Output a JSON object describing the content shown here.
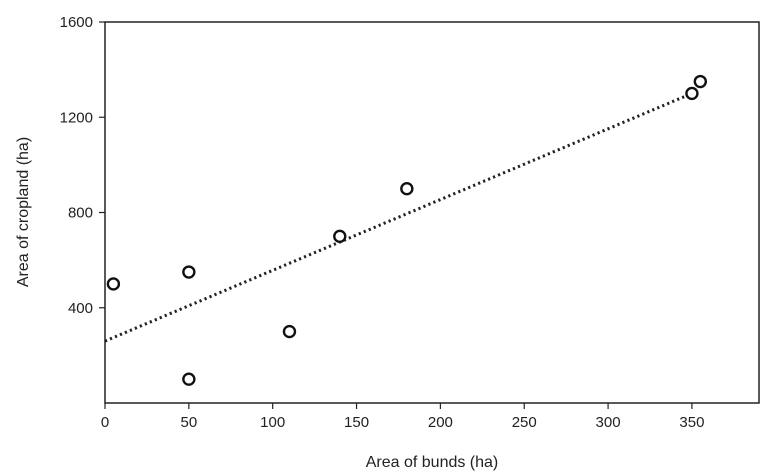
{
  "chart_data": {
    "type": "scatter",
    "title": "",
    "xlabel": "Area of bunds (ha)",
    "ylabel": "Area of cropland (ha)",
    "xlim": [
      0,
      390
    ],
    "ylim": [
      0,
      1600
    ],
    "x_ticks": [
      0,
      50,
      100,
      150,
      200,
      250,
      300,
      350
    ],
    "y_ticks": [
      400,
      800,
      1200,
      1600
    ],
    "grid": false,
    "legend": "none",
    "series": [
      {
        "marker": "open-circle",
        "color": "#111111",
        "points": [
          {
            "x": 5,
            "y": 500
          },
          {
            "x": 50,
            "y": 550
          },
          {
            "x": 50,
            "y": 100
          },
          {
            "x": 110,
            "y": 300
          },
          {
            "x": 140,
            "y": 700
          },
          {
            "x": 180,
            "y": 900
          },
          {
            "x": 350,
            "y": 1300
          },
          {
            "x": 355,
            "y": 1350
          }
        ]
      }
    ],
    "trendline": {
      "style": "dotted",
      "color": "#222222",
      "start": {
        "x": 0,
        "y": 260
      },
      "end": {
        "x": 350,
        "y": 1300
      }
    }
  }
}
